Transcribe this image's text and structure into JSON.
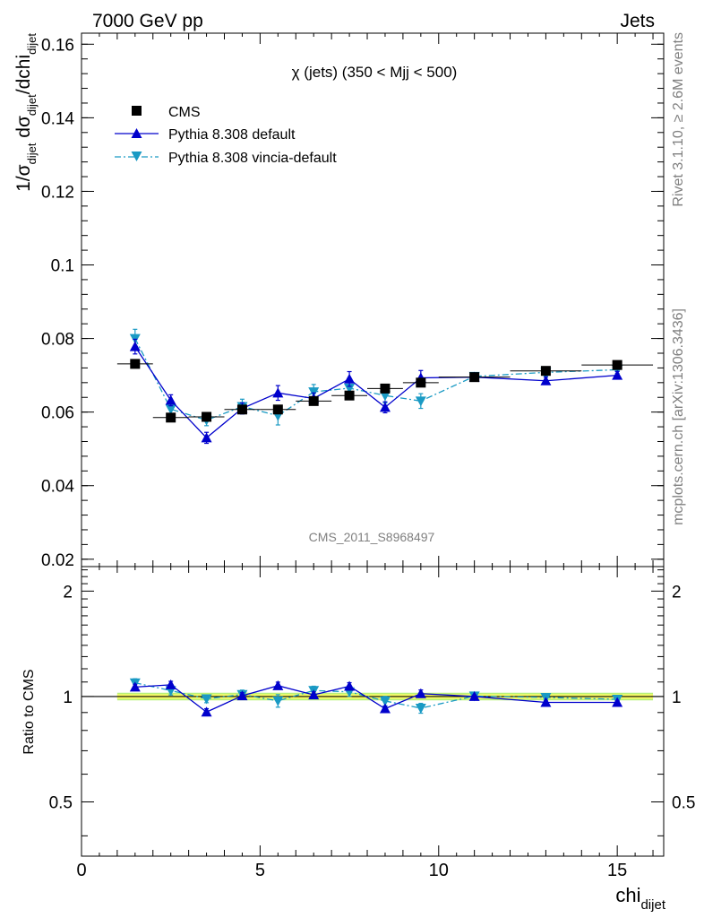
{
  "header": {
    "left": "7000 GeV pp",
    "right": "Jets"
  },
  "side_text": {
    "top": "Rivet 3.1.10, ≥ 2.6M events",
    "bottom": "mcplots.cern.ch [arXiv:1306.3436]"
  },
  "chart_data": [
    {
      "type": "scatter",
      "panel": "main",
      "title": "χ (jets) (350 < Mjj <  500)",
      "watermark": "CMS_2011_S8968497",
      "ylabel": "1/σ_dijet dσ_dijet/dchi_dijet",
      "ylabel_parts": {
        "a": "1/σ",
        "a_sub": "dijet",
        "b": " dσ",
        "b_sub": "dijet",
        "c": "/dchi",
        "c_sub": "dijet"
      },
      "ylim": [
        0.018,
        0.163
      ],
      "yticks": [
        0.02,
        0.04,
        0.06,
        0.08,
        0.1,
        0.12,
        0.14,
        0.16
      ],
      "ytick_labels": [
        "0.02",
        "0.04",
        "0.06",
        "0.08",
        "0.1",
        "0.12",
        "0.14",
        "0.16"
      ],
      "xlim": [
        0,
        16.3
      ],
      "legend_position": "top-left",
      "series": [
        {
          "name": "CMS",
          "color": "#000000",
          "marker": "square",
          "x": [
            1.5,
            2.5,
            3.5,
            4.5,
            5.5,
            6.5,
            7.5,
            8.5,
            9.5,
            11,
            13,
            15
          ],
          "x_err": [
            0.5,
            0.5,
            0.5,
            0.5,
            0.5,
            0.5,
            0.5,
            0.5,
            0.5,
            1,
            1,
            1
          ],
          "y": [
            0.0731,
            0.0585,
            0.0587,
            0.0607,
            0.0607,
            0.063,
            0.0645,
            0.0664,
            0.068,
            0.0695,
            0.0712,
            0.0728
          ],
          "y_err": [
            0.0008,
            0.0008,
            0.0008,
            0.0008,
            0.0008,
            0.0008,
            0.0008,
            0.0008,
            0.0008,
            0.0008,
            0.0008,
            0.0008
          ]
        },
        {
          "name": "Pythia 8.308 default",
          "color": "#0000cc",
          "marker": "triangle-up",
          "line": "solid",
          "x": [
            1.5,
            2.5,
            3.5,
            4.5,
            5.5,
            6.5,
            7.5,
            8.5,
            9.5,
            11,
            13,
            15
          ],
          "y": [
            0.0778,
            0.0632,
            0.053,
            0.061,
            0.0652,
            0.0637,
            0.069,
            0.0613,
            0.0693,
            0.0695,
            0.0685,
            0.07
          ],
          "y_err": [
            0.002,
            0.0015,
            0.0015,
            0.0015,
            0.002,
            0.0015,
            0.002,
            0.0015,
            0.002,
            0.0008,
            0.001,
            0.001
          ]
        },
        {
          "name": "Pythia 8.308 vincia-default",
          "color": "#1a9ac4",
          "marker": "triangle-down",
          "line": "dashdot",
          "x": [
            1.5,
            2.5,
            3.5,
            4.5,
            5.5,
            6.5,
            7.5,
            8.5,
            9.5,
            11,
            13,
            15
          ],
          "y": [
            0.08,
            0.0608,
            0.0578,
            0.0615,
            0.059,
            0.0655,
            0.0665,
            0.0645,
            0.063,
            0.0697,
            0.0708,
            0.0715
          ],
          "y_err": [
            0.0025,
            0.002,
            0.0015,
            0.002,
            0.0025,
            0.002,
            0.002,
            0.002,
            0.002,
            0.001,
            0.001,
            0.001
          ]
        }
      ]
    },
    {
      "type": "scatter",
      "panel": "ratio",
      "ylabel": "Ratio to CMS",
      "ylim": [
        0.35,
        2.35
      ],
      "yscale": "log",
      "yticks": [
        0.5,
        1,
        2
      ],
      "ytick_labels": [
        "0.5",
        "1",
        "2"
      ],
      "xlim": [
        0,
        16.3
      ],
      "xticks": [
        0,
        5,
        10,
        15
      ],
      "xtick_labels": [
        "0",
        "5",
        "10",
        "15"
      ],
      "xlabel": "chi_dijet",
      "xlabel_parts": {
        "main": "chi",
        "sub": "dijet"
      },
      "band": {
        "x_range": [
          1,
          16
        ],
        "inner": [
          0.985,
          1.015
        ],
        "outer": [
          0.975,
          1.025
        ],
        "inner_color": "#ffff66",
        "outer_color": "#b8f07a"
      },
      "series": [
        {
          "name": "Pythia 8.308 default",
          "color": "#0000cc",
          "marker": "triangle-up",
          "line": "solid",
          "x": [
            1.5,
            2.5,
            3.5,
            4.5,
            5.5,
            6.5,
            7.5,
            8.5,
            9.5,
            11,
            13,
            15
          ],
          "y": [
            1.064,
            1.08,
            0.903,
            1.005,
            1.074,
            1.011,
            1.07,
            0.923,
            1.019,
            1.0,
            0.962,
            0.962
          ],
          "y_err": [
            0.02,
            0.025,
            0.02,
            0.02,
            0.025,
            0.02,
            0.025,
            0.015,
            0.025,
            0.01,
            0.01,
            0.01
          ]
        },
        {
          "name": "Pythia 8.308 vincia-default",
          "color": "#1a9ac4",
          "marker": "triangle-down",
          "line": "dashdot",
          "x": [
            1.5,
            2.5,
            3.5,
            4.5,
            5.5,
            6.5,
            7.5,
            8.5,
            9.5,
            11,
            13,
            15
          ],
          "y": [
            1.094,
            1.04,
            0.985,
            1.013,
            0.972,
            1.04,
            1.031,
            0.971,
            0.926,
            1.003,
            0.994,
            0.982
          ],
          "y_err": [
            0.03,
            0.03,
            0.025,
            0.03,
            0.04,
            0.03,
            0.03,
            0.03,
            0.03,
            0.012,
            0.012,
            0.012
          ]
        }
      ]
    }
  ]
}
